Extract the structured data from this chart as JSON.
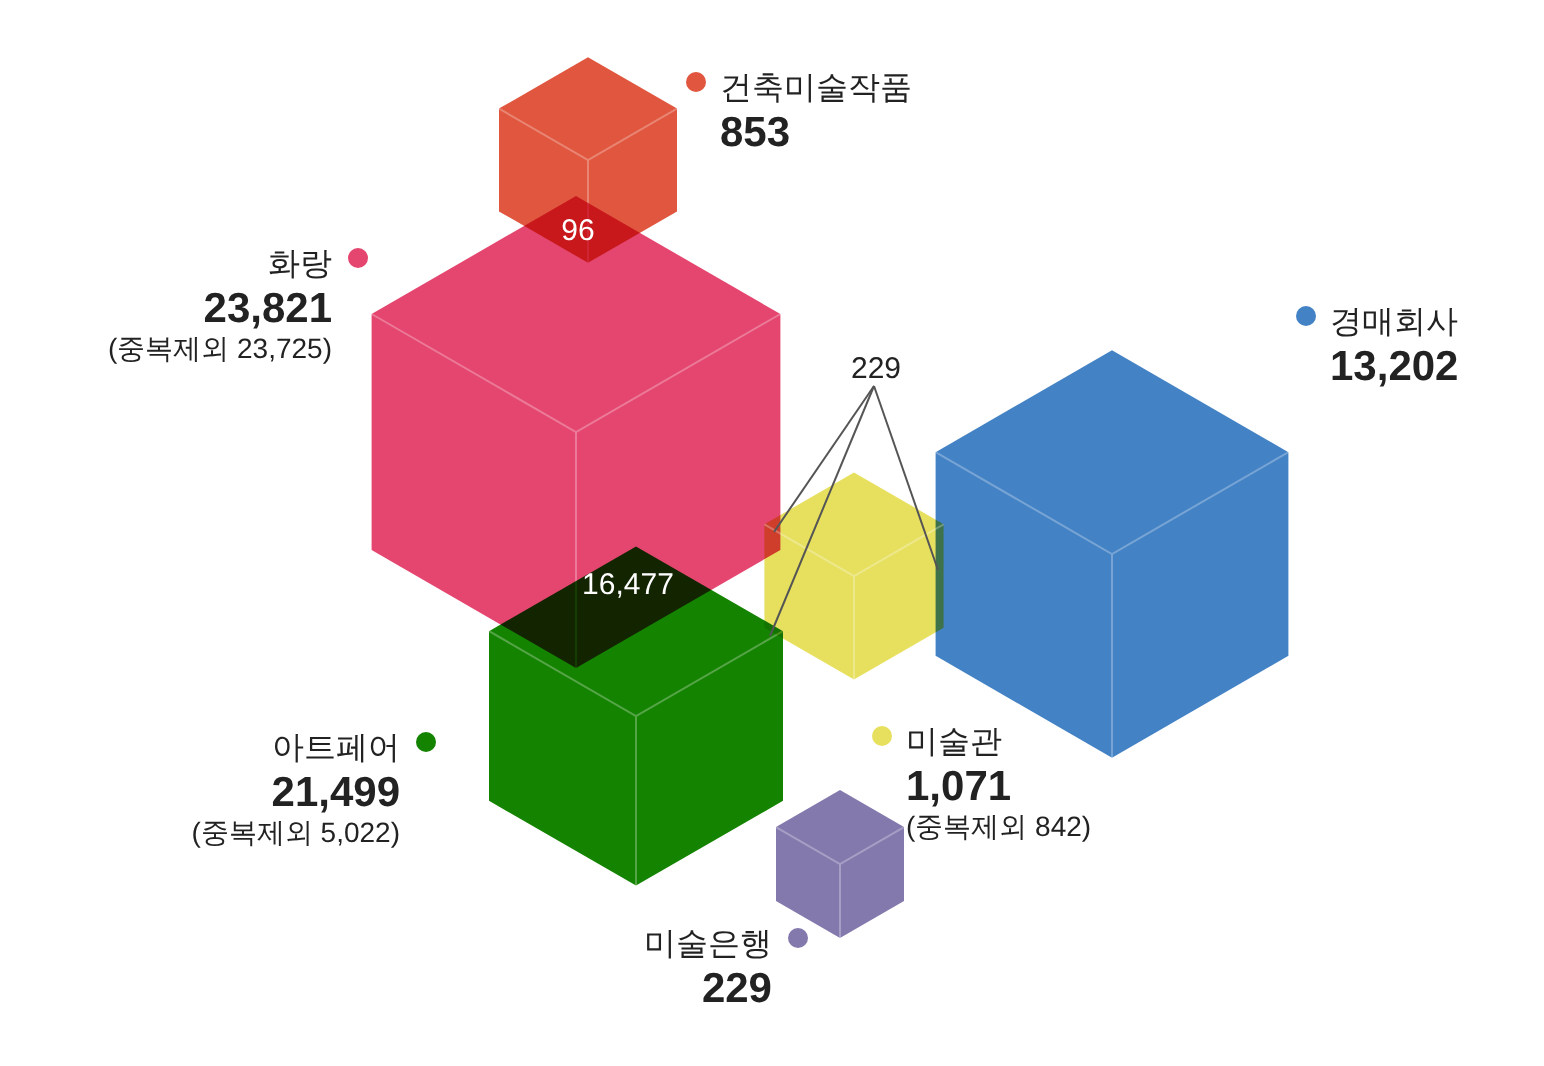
{
  "chart_data": {
    "type": "other",
    "categories": [
      "건축미술작품",
      "화랑",
      "경매회사",
      "아트페어",
      "미술관",
      "미술은행"
    ],
    "colors": [
      "#e0563e",
      "#e4466f",
      "#4382c5",
      "#148300",
      "#e7e05f",
      "#8479ad"
    ],
    "series": [
      {
        "values": [
          853,
          23821,
          13202,
          21499,
          1071,
          229
        ],
        "value_labels": [
          "853",
          "23,821",
          "13,202",
          "21,499",
          "1,071",
          "229"
        ]
      },
      {
        "values": [
          null,
          23725,
          null,
          5022,
          842,
          null
        ],
        "value_labels": [
          null,
          "(중복제외 23,725)",
          null,
          "(중복제외 5,022)",
          "(중복제외 842)",
          null
        ]
      }
    ],
    "annotations": [
      "96",
      "16,477",
      "229"
    ]
  }
}
